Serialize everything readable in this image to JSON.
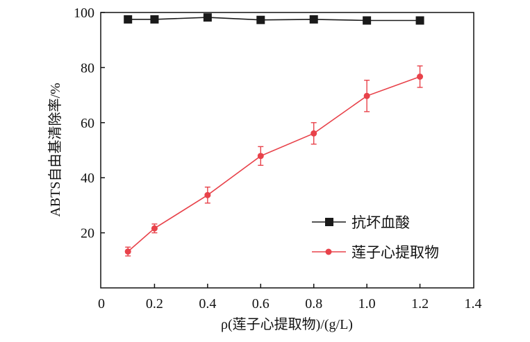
{
  "colors": {
    "axis": "#111111",
    "ascorbic": "#1a1a1a",
    "extract": "#e8424a"
  },
  "chart_data": {
    "type": "line",
    "xlabel": "ρ(莲子心提取物)/(g/L)",
    "ylabel": "ABTS自由基清除率/%",
    "xlim": [
      0,
      1.4
    ],
    "ylim": [
      0,
      100
    ],
    "xticks": [
      0,
      0.2,
      0.4,
      0.6,
      0.8,
      1.0,
      1.2,
      1.4
    ],
    "xtick_labels": [
      "0",
      "0.2",
      "0.4",
      "0.6",
      "0.8",
      "1.0",
      "1.2",
      "1.4"
    ],
    "yticks": [
      20,
      40,
      60,
      80,
      100
    ],
    "ytick_labels": [
      "20",
      "40",
      "60",
      "80",
      "100"
    ],
    "grid": false,
    "legend_position": "lower-right",
    "series": [
      {
        "name": "抗坏血酸",
        "marker": "square",
        "color": "#1a1a1a",
        "x": [
          0.1,
          0.2,
          0.4,
          0.6,
          0.8,
          1.0,
          1.2
        ],
        "values": [
          97.5,
          97.5,
          98.2,
          97.3,
          97.5,
          97.1,
          97.1
        ],
        "errors": [
          0,
          0,
          0,
          0,
          0,
          0,
          0
        ]
      },
      {
        "name": "莲子心提取物",
        "marker": "circle",
        "color": "#e8424a",
        "x": [
          0.1,
          0.2,
          0.4,
          0.6,
          0.8,
          1.0,
          1.2
        ],
        "values": [
          13.2,
          21.6,
          33.7,
          47.9,
          56.1,
          69.7,
          76.7
        ],
        "errors": [
          1.6,
          1.6,
          2.9,
          3.4,
          3.9,
          5.7,
          3.9
        ]
      }
    ]
  }
}
